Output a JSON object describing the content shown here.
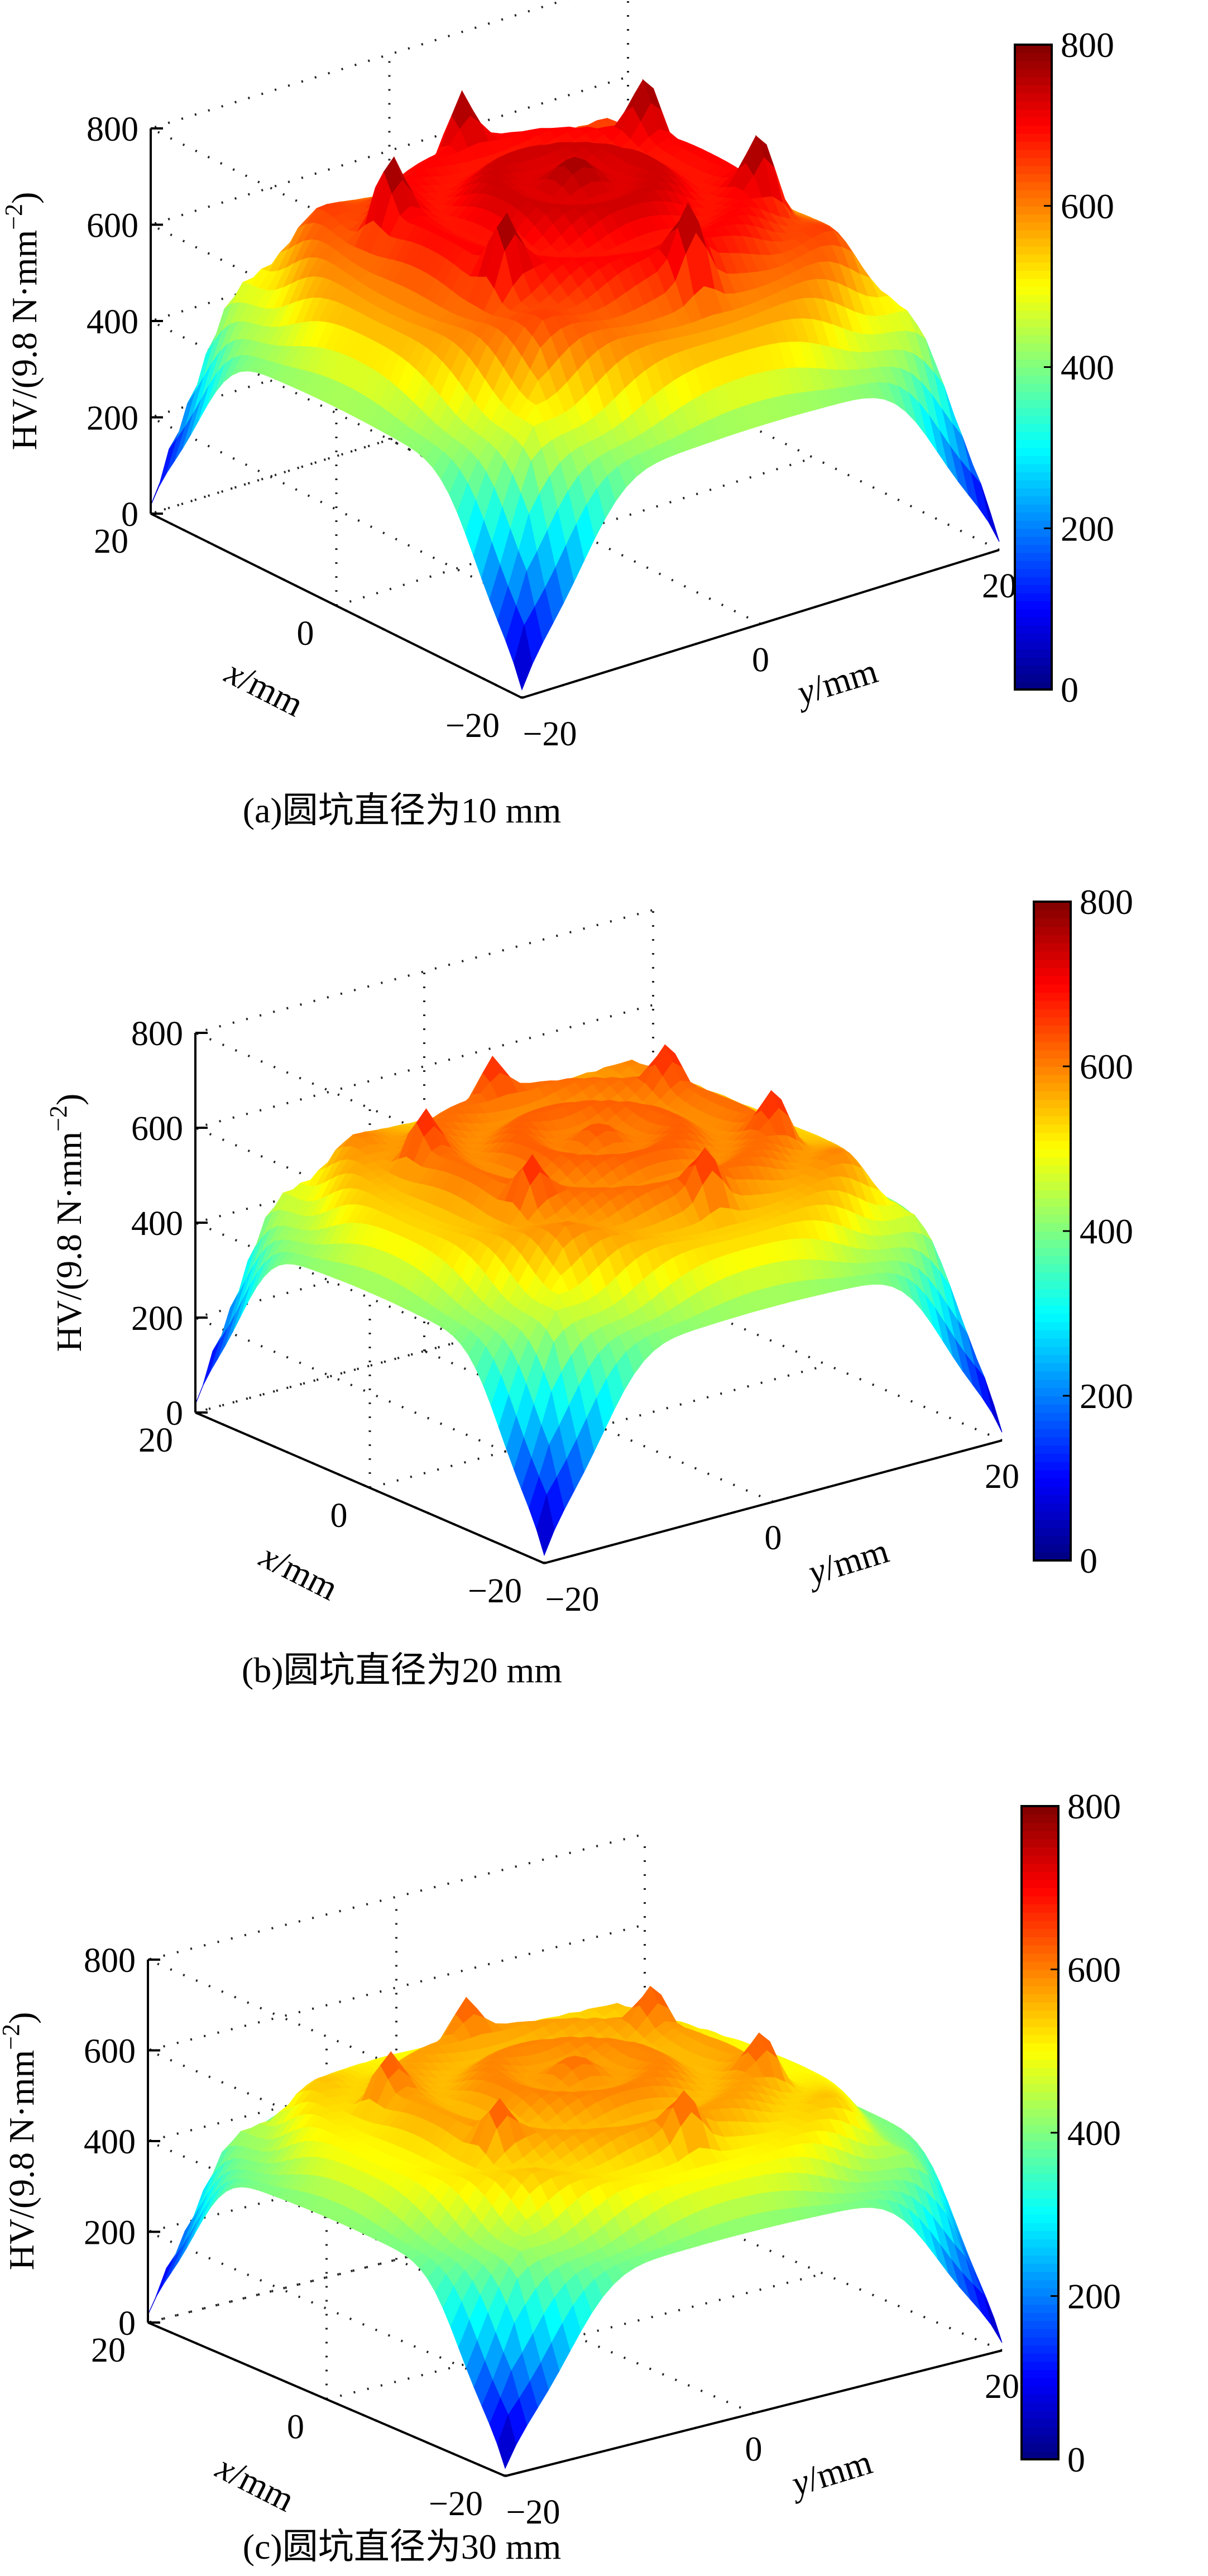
{
  "chart_data": [
    {
      "type": "surface",
      "caption": "(a)圆坑直径为10 mm",
      "zlabel": "HV/(9.8 N·mm",
      "zlabel_sup": "−2",
      "zlabel_close": ")",
      "xlabel_var": "x",
      "xlabel_unit": "/mm",
      "ylabel_var": "y",
      "ylabel_unit": "/mm",
      "xlim": [
        -20,
        20
      ],
      "ylim": [
        -20,
        20
      ],
      "zlim": [
        0,
        800
      ],
      "x_ticks": [
        "20",
        "0",
        "−20"
      ],
      "y_ticks": [
        "−20",
        "0",
        "20"
      ],
      "z_ticks": [
        "0",
        "200",
        "400",
        "600",
        "800"
      ],
      "colorbar": {
        "range": [
          0,
          800
        ],
        "ticks": [
          "0",
          "200",
          "400",
          "600",
          "800"
        ],
        "colormap": "jet"
      },
      "surface": {
        "plateau_max": 760,
        "plateau_min": 610,
        "corner_min": 0,
        "edge_mid": 430,
        "spike_count": 6,
        "spike_height": 800
      }
    },
    {
      "type": "surface",
      "caption": "(b)圆坑直径为20 mm",
      "zlabel": "HV/(9.8 N·mm",
      "zlabel_sup": "−2",
      "zlabel_close": ")",
      "xlabel_var": "x",
      "xlabel_unit": "/mm",
      "ylabel_var": "y",
      "ylabel_unit": "/mm",
      "xlim": [
        -20,
        20
      ],
      "ylim": [
        -20,
        20
      ],
      "zlim": [
        0,
        800
      ],
      "x_ticks": [
        "20",
        "0",
        "−20"
      ],
      "y_ticks": [
        "−20",
        "0",
        "20"
      ],
      "z_ticks": [
        "0",
        "200",
        "400",
        "600",
        "800"
      ],
      "colorbar": {
        "range": [
          0,
          800
        ],
        "ticks": [
          "0",
          "200",
          "400",
          "600",
          "800"
        ],
        "colormap": "jet"
      },
      "surface": {
        "plateau_max": 620,
        "plateau_min": 580,
        "corner_min": 0,
        "edge_mid": 430,
        "spike_count": 6,
        "spike_height": 680
      }
    },
    {
      "type": "surface",
      "caption": "(c)圆坑直径为30 mm",
      "zlabel": "HV/(9.8 N·mm",
      "zlabel_sup": "−2",
      "zlabel_close": ")",
      "xlabel_var": "x",
      "xlabel_unit": "/mm",
      "ylabel_var": "y",
      "ylabel_unit": "/mm",
      "xlim": [
        -20,
        20
      ],
      "ylim": [
        -20,
        20
      ],
      "zlim": [
        0,
        800
      ],
      "x_ticks": [
        "20",
        "0",
        "−20"
      ],
      "y_ticks": [
        "−20",
        "0",
        "20"
      ],
      "z_ticks": [
        "0",
        "200",
        "400",
        "600",
        "800"
      ],
      "colorbar": {
        "range": [
          0,
          800
        ],
        "ticks": [
          "0",
          "200",
          "400",
          "600",
          "800"
        ],
        "colormap": "jet"
      },
      "surface": {
        "plateau_max": 600,
        "plateau_min": 520,
        "corner_min": 0,
        "edge_mid": 420,
        "spike_count": 6,
        "spike_height": 640
      }
    }
  ]
}
